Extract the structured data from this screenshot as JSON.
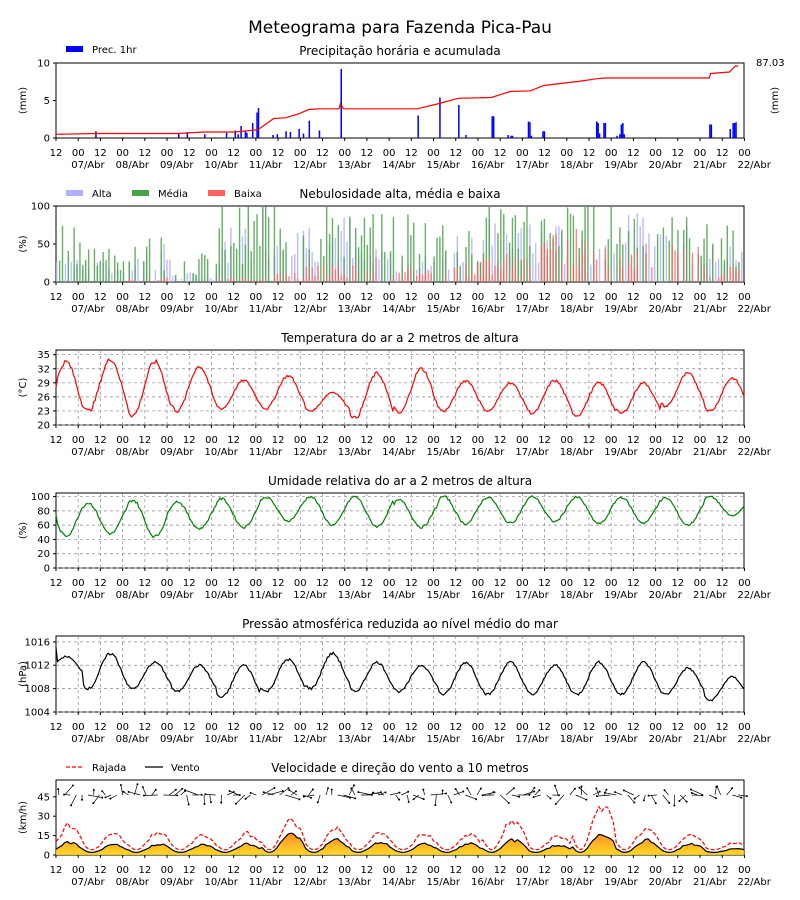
{
  "title": "Meteograma para Fazenda Pica-Pau",
  "time_axis": {
    "hours": [
      "12",
      "00",
      "12",
      "00",
      "12",
      "00",
      "12",
      "00",
      "12",
      "00",
      "12",
      "00",
      "12",
      "00",
      "12",
      "00",
      "12",
      "00",
      "12",
      "00",
      "12",
      "00",
      "12",
      "00",
      "12",
      "00",
      "12",
      "00",
      "12",
      "00",
      "12",
      "00"
    ],
    "dates": [
      "07/Abr",
      "08/Abr",
      "09/Abr",
      "10/Abr",
      "11/Abr",
      "12/Abr",
      "13/Abr",
      "14/Abr",
      "15/Abr",
      "16/Abr",
      "17/Abr",
      "18/Abr",
      "19/Abr",
      "20/Abr",
      "21/Abr",
      "22/Abr"
    ]
  },
  "chart_data": [
    {
      "type": "bar",
      "title": "Precipitação horária e acumulada",
      "ylabel": "(mm)",
      "ylabel_right": "(mm)",
      "ylim": [
        0,
        10
      ],
      "yticks": [
        "0",
        "5",
        "10"
      ],
      "legend": "top-left",
      "accum_label": "87.03",
      "colors": {
        "bars": "#0000ff",
        "accum": "#ff0000"
      },
      "series": [
        {
          "name": "Prec. 1hr",
          "x_hours": [
            27,
            84,
            90,
            102,
            117,
            123,
            125,
            127,
            130,
            131,
            135,
            138,
            139,
            149,
            152,
            158,
            161,
            167,
            170,
            174,
            181,
            196,
            249,
            264,
            277,
            282,
            300,
            301,
            311,
            313,
            314,
            325,
            326,
            327,
            335,
            336,
            372,
            373,
            374,
            377,
            378,
            386,
            388,
            389,
            390,
            391,
            450,
            451,
            464,
            466,
            467,
            468
          ],
          "values": [
            0.9,
            0.6,
            0.8,
            0.5,
            0.7,
            1.0,
            0.5,
            1.6,
            0.9,
            0.7,
            2.0,
            3.4,
            4.0,
            0.4,
            0.5,
            0.9,
            0.8,
            1.2,
            0.6,
            2.3,
            1.0,
            9.2,
            3.0,
            5.4,
            4.4,
            0.4,
            2.9,
            2.9,
            0.4,
            0.3,
            0.3,
            2.2,
            2.1,
            0.3,
            0.9,
            0.9,
            2.2,
            2.0,
            0.6,
            2.0,
            2.0,
            0.3,
            0.5,
            1.8,
            2.0,
            0.5,
            1.8,
            1.8,
            1.2,
            2.0,
            2.0,
            2.1
          ]
        }
      ],
      "accumulated": {
        "x_hours": [
          0,
          27,
          84,
          102,
          123,
          139,
          150,
          158,
          167,
          174,
          181,
          195,
          196,
          198,
          249,
          264,
          277,
          300,
          313,
          327,
          336,
          362,
          372,
          378,
          450,
          451,
          464,
          468,
          470
        ],
        "values": [
          0.5,
          0.6,
          0.6,
          0.8,
          0.8,
          1.1,
          2.6,
          2.7,
          3.2,
          3.8,
          3.9,
          3.9,
          4.6,
          3.9,
          3.9,
          4.6,
          5.3,
          5.4,
          6.2,
          6.3,
          7.0,
          7.6,
          7.9,
          8.0,
          8.0,
          8.6,
          8.8,
          9.6,
          9.6
        ]
      }
    },
    {
      "type": "bar",
      "title": "Nebulosidade alta, média e baixa",
      "ylabel": "(%)",
      "ylim": [
        0,
        100
      ],
      "yticks": [
        "0",
        "50",
        "100"
      ],
      "legend": "top-left",
      "series": [
        {
          "name": "Alta",
          "color": "#b0b0ff"
        },
        {
          "name": "Média",
          "color": "#4aa24a"
        },
        {
          "name": "Baixa",
          "color": "#ff6060"
        }
      ],
      "profile_by_day": {
        "alta": [
          30,
          20,
          40,
          10,
          60,
          90,
          70,
          40,
          30,
          50,
          70,
          60,
          50,
          70,
          60,
          40
        ],
        "media": [
          70,
          40,
          50,
          30,
          80,
          95,
          90,
          70,
          80,
          70,
          90,
          80,
          95,
          85,
          70,
          60
        ],
        "baixa": [
          0,
          0,
          5,
          0,
          5,
          10,
          20,
          25,
          15,
          20,
          30,
          50,
          60,
          40,
          40,
          20
        ]
      }
    },
    {
      "type": "line",
      "title": "Temperatura do ar a 2 metros de altura",
      "ylabel": "(°C)",
      "ylim": [
        20,
        36
      ],
      "yticks": [
        "20",
        "23",
        "26",
        "29",
        "32",
        "35"
      ],
      "grid": true,
      "color": "#ff0000",
      "daily": {
        "max": [
          33.5,
          34.0,
          33.5,
          32.5,
          29.5,
          30.5,
          27.0,
          31.0,
          32.0,
          29.5,
          29.0,
          29.5,
          29.0,
          29.0,
          31.0,
          30.0
        ],
        "min": [
          22.5,
          23.0,
          22.0,
          23.0,
          23.5,
          23.5,
          23.0,
          21.5,
          22.5,
          23.0,
          23.0,
          22.5,
          22.0,
          22.5,
          24.0,
          23.0
        ]
      },
      "start": 28.0
    },
    {
      "type": "line",
      "title": "Umidade relativa do ar a 2 metros de altura",
      "ylabel": "(%)",
      "ylim": [
        0,
        105
      ],
      "yticks": [
        "0",
        "20",
        "40",
        "60",
        "80",
        "100"
      ],
      "grid": true,
      "color": "#008000",
      "daily": {
        "max": [
          93,
          91,
          95,
          93,
          97,
          99,
          100,
          100,
          95,
          100,
          99,
          100,
          99,
          99,
          98,
          100
        ],
        "min": [
          45,
          48,
          44,
          55,
          57,
          66,
          60,
          58,
          57,
          62,
          63,
          65,
          62,
          63,
          60,
          73
        ]
      },
      "start": 75
    },
    {
      "type": "line",
      "title": "Pressão atmosférica reduzida ao nível médio do mar",
      "ylabel": "(hPa)",
      "ylim": [
        1004,
        1017
      ],
      "yticks": [
        "1004",
        "1008",
        "1012",
        "1016"
      ],
      "grid": true,
      "color": "#000000",
      "daily": {
        "max": [
          1013.5,
          1014.0,
          1012.5,
          1012.0,
          1012.0,
          1013.0,
          1014.0,
          1012.5,
          1012.0,
          1012.5,
          1012.5,
          1012.0,
          1012.5,
          1012.5,
          1011.5,
          1010.0
        ],
        "min": [
          1010.5,
          1008.0,
          1008.0,
          1007.5,
          1006.5,
          1007.5,
          1008.0,
          1007.5,
          1007.5,
          1007.0,
          1007.0,
          1007.0,
          1007.0,
          1007.0,
          1007.0,
          1006.0
        ]
      },
      "start": 1015.0
    },
    {
      "type": "line",
      "title": "Velocidade e direção do vento a 10 metros",
      "ylabel": "(km/h)",
      "ylim": [
        0,
        58
      ],
      "yticks": [
        "0",
        "15",
        "30",
        "45"
      ],
      "legend": "top-left",
      "series": [
        {
          "name": "Rajada",
          "color": "#ff0000",
          "dash": true,
          "peaks": [
            22,
            15,
            17,
            14,
            16,
            27,
            19,
            16,
            15,
            14,
            28,
            14,
            40,
            20,
            15,
            8
          ]
        },
        {
          "name": "Vento",
          "color": "#000000",
          "peaks": [
            10,
            8,
            9,
            8,
            9,
            18,
            12,
            10,
            9,
            9,
            12,
            8,
            17,
            12,
            9,
            5
          ]
        }
      ]
    }
  ]
}
